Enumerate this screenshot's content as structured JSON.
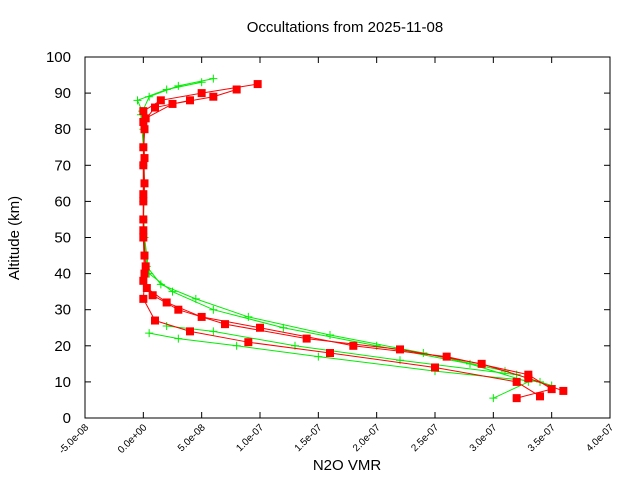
{
  "chart_data": {
    "type": "line",
    "title": "Occultations from 2025-11-08",
    "xlabel": "N2O VMR",
    "ylabel": "Altitude (km)",
    "xlim": [
      -5e-08,
      4e-07
    ],
    "ylim": [
      0,
      100
    ],
    "xticks": [
      "-5.0e-08",
      "0.0e+00",
      "5.0e-08",
      "1.0e-07",
      "1.5e-07",
      "2.0e-07",
      "2.5e-07",
      "3.0e-07",
      "3.5e-07",
      "4.0e-07"
    ],
    "xtick_values": [
      -5e-08,
      0,
      5e-08,
      1e-07,
      1.5e-07,
      2e-07,
      2.5e-07,
      3e-07,
      3.5e-07,
      4e-07
    ],
    "yticks": [
      "0",
      "10",
      "20",
      "30",
      "40",
      "50",
      "60",
      "70",
      "80",
      "90",
      "100"
    ],
    "ytick_values": [
      0,
      10,
      20,
      30,
      40,
      50,
      60,
      70,
      80,
      90,
      100
    ],
    "grid": false,
    "legend": "none",
    "series": [
      {
        "color": "#00ee00",
        "marker": "plus",
        "profiles": [
          [
            [
              3e-07,
              5.5
            ],
            [
              3.3e-07,
              10
            ],
            [
              2.8e-07,
              15
            ],
            [
              2e-07,
              20
            ],
            [
              1.2e-07,
              25
            ],
            [
              6e-08,
              30
            ],
            [
              2.5e-08,
              35
            ],
            [
              5e-09,
              40
            ],
            [
              1e-09,
              50
            ],
            [
              0,
              60
            ],
            [
              0,
              70
            ],
            [
              0,
              80
            ],
            [
              -1e-09,
              85
            ],
            [
              -5e-09,
              88
            ],
            [
              2e-08,
              91
            ],
            [
              5e-08,
              93
            ]
          ],
          [
            [
              3.5e-07,
              9
            ],
            [
              3.1e-07,
              13
            ],
            [
              2.4e-07,
              18
            ],
            [
              1.6e-07,
              23
            ],
            [
              9e-08,
              28
            ],
            [
              4.5e-08,
              33
            ],
            [
              1.5e-08,
              37
            ],
            [
              3e-09,
              42
            ],
            [
              0,
              55
            ],
            [
              1e-09,
              65
            ],
            [
              0,
              75
            ],
            [
              -2e-09,
              84
            ],
            [
              5e-09,
              89
            ],
            [
              3e-08,
              92
            ],
            [
              6e-08,
              94
            ]
          ],
          [
            [
              3.4e-07,
              10
            ],
            [
              2.5e-07,
              13
            ],
            [
              1.5e-07,
              17
            ],
            [
              8e-08,
              20
            ],
            [
              3e-08,
              22
            ],
            [
              5e-09,
              23.5
            ]
          ],
          [
            [
              3.2e-07,
              12
            ],
            [
              2.2e-07,
              16
            ],
            [
              1.3e-07,
              20
            ],
            [
              6e-08,
              24
            ],
            [
              2e-08,
              25.5
            ]
          ]
        ]
      },
      {
        "color": "#ff0000",
        "marker": "square",
        "profiles": [
          [
            [
              3.2e-07,
              5.5
            ],
            [
              3.5e-07,
              8
            ],
            [
              3.3e-07,
              12
            ],
            [
              2.6e-07,
              17
            ],
            [
              1.8e-07,
              20
            ],
            [
              1e-07,
              25
            ],
            [
              5e-08,
              28
            ],
            [
              2e-08,
              32
            ],
            [
              3e-09,
              36
            ],
            [
              1e-09,
              40
            ],
            [
              0,
              50
            ],
            [
              0,
              60
            ],
            [
              0,
              70
            ],
            [
              1e-09,
              80
            ],
            [
              0,
              85
            ],
            [
              1.5e-08,
              88
            ],
            [
              5e-08,
              90
            ],
            [
              9.8e-08,
              92.5
            ]
          ],
          [
            [
              3.6e-07,
              7.5
            ],
            [
              3.3e-07,
              11
            ],
            [
              2.9e-07,
              15
            ],
            [
              2.2e-07,
              19
            ],
            [
              1.4e-07,
              22
            ],
            [
              7e-08,
              26
            ],
            [
              3e-08,
              30
            ],
            [
              8e-09,
              34
            ],
            [
              0,
              38
            ],
            [
              1e-09,
              45
            ],
            [
              0,
              55
            ],
            [
              1e-09,
              65
            ],
            [
              0,
              75
            ],
            [
              2e-09,
              83
            ],
            [
              2.5e-08,
              87
            ],
            [
              6e-08,
              89
            ],
            [
              8e-08,
              91
            ]
          ],
          [
            [
              3.4e-07,
              6
            ],
            [
              3.2e-07,
              10
            ],
            [
              2.5e-07,
              14
            ],
            [
              1.6e-07,
              18
            ],
            [
              9e-08,
              21
            ],
            [
              4e-08,
              24
            ],
            [
              1e-08,
              27
            ],
            [
              0,
              33
            ],
            [
              2e-09,
              42
            ],
            [
              0,
              52
            ],
            [
              0,
              62
            ],
            [
              1e-09,
              72
            ],
            [
              0,
              82
            ],
            [
              1e-08,
              86
            ],
            [
              4e-08,
              88
            ]
          ]
        ]
      }
    ]
  }
}
